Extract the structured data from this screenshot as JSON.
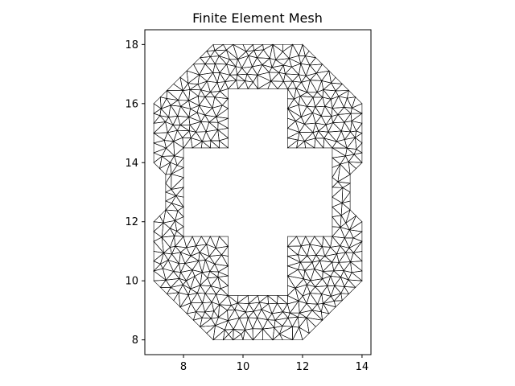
{
  "chart_data": {
    "type": "mesh",
    "title": "Finite Element Mesh",
    "xlabel": "",
    "ylabel": "",
    "xlim": [
      6.7,
      14.3
    ],
    "ylim": [
      7.5,
      18.5
    ],
    "xticks": [
      8,
      10,
      12,
      14
    ],
    "yticks": [
      8,
      10,
      12,
      14,
      16,
      18
    ],
    "aspect": "equal",
    "outer_boundary": [
      [
        9,
        8
      ],
      [
        12,
        8
      ],
      [
        14,
        10
      ],
      [
        14,
        12
      ],
      [
        13.6,
        12.4
      ],
      [
        13.6,
        13.6
      ],
      [
        14,
        14
      ],
      [
        14,
        16
      ],
      [
        12,
        18
      ],
      [
        9,
        18
      ],
      [
        7,
        16
      ],
      [
        7,
        14
      ],
      [
        7.4,
        13.6
      ],
      [
        7.4,
        12.4
      ],
      [
        7,
        12
      ],
      [
        7,
        10
      ]
    ],
    "hole_boundary": [
      [
        9.5,
        9.5
      ],
      [
        11.5,
        9.5
      ],
      [
        11.5,
        11.5
      ],
      [
        13,
        11.5
      ],
      [
        13,
        14.5
      ],
      [
        11.5,
        14.5
      ],
      [
        11.5,
        16.5
      ],
      [
        9.5,
        16.5
      ],
      [
        9.5,
        14.5
      ],
      [
        8,
        14.5
      ],
      [
        8,
        11.5
      ],
      [
        9.5,
        11.5
      ]
    ],
    "element_type": "triangle",
    "edge_color": "#000000",
    "fill_color": "none",
    "mesh_spacing": 0.32
  }
}
